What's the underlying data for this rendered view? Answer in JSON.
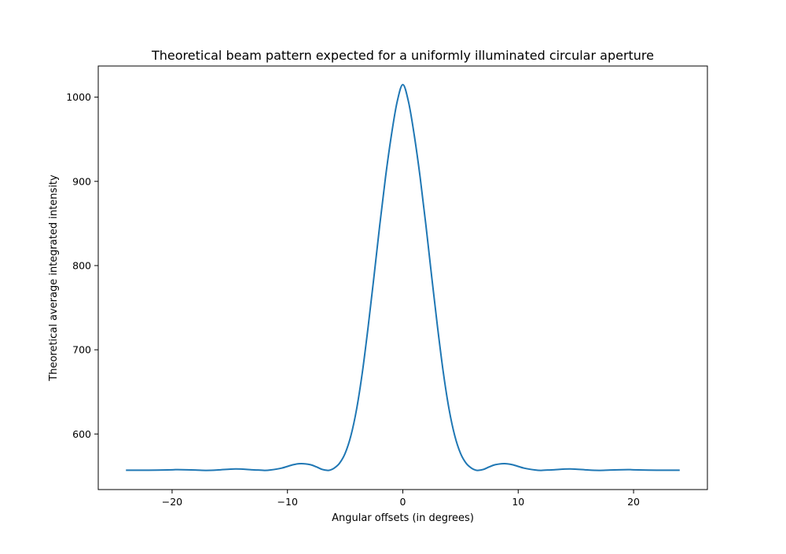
{
  "chart_data": {
    "type": "line",
    "title": "Theoretical beam pattern expected for a uniformly illuminated circular aperture",
    "xlabel": "Angular offsets (in degrees)",
    "ylabel": "Theoretical average integrated intensity",
    "xlim": [
      -26.4,
      26.4
    ],
    "ylim": [
      534,
      1037
    ],
    "xticks": [
      -20,
      -10,
      0,
      10,
      20
    ],
    "xtick_labels": [
      "−20",
      "−10",
      "0",
      "10",
      "20"
    ],
    "yticks": [
      600,
      700,
      800,
      900,
      1000
    ],
    "ytick_labels": [
      "600",
      "700",
      "800",
      "900",
      "1000"
    ],
    "grid": false,
    "legend": false,
    "color": "#1f77b4",
    "series": [
      {
        "x": [
          -24,
          -22,
          -20,
          -19.5,
          -18,
          -17,
          -16,
          -14.5,
          -13,
          -12,
          -11.5,
          -10.5,
          -9.5,
          -8.8,
          -8,
          -7.5,
          -7,
          -6.5,
          -6.3,
          -6,
          -5.5,
          -5,
          -4.5,
          -4,
          -3.5,
          -3,
          -2.5,
          -2,
          -1.5,
          -1,
          -0.5,
          0,
          0.5,
          1,
          1.5,
          2,
          2.5,
          3,
          3.5,
          4,
          4.5,
          5,
          5.5,
          6,
          6.3,
          6.5,
          7,
          7.5,
          8,
          8.8,
          9.5,
          10.5,
          11.5,
          12,
          13,
          14.5,
          16,
          17,
          18,
          19.5,
          20,
          22,
          24
        ],
        "y": [
          557,
          557,
          557.5,
          557.7,
          557.2,
          556.8,
          557.3,
          558.5,
          557.5,
          556.8,
          557.2,
          559.5,
          563.5,
          564.8,
          563.5,
          561,
          558,
          556.8,
          557.2,
          559,
          565,
          577,
          598,
          630,
          674,
          728,
          787,
          848,
          905,
          954,
          994,
          1015,
          994,
          954,
          905,
          848,
          787,
          728,
          674,
          630,
          598,
          577,
          565,
          559,
          557.2,
          556.8,
          558,
          561,
          563.5,
          564.8,
          563.5,
          559.5,
          557.2,
          556.8,
          557.5,
          558.5,
          557.3,
          556.8,
          557.2,
          557.7,
          557.5,
          557,
          557
        ]
      }
    ]
  }
}
